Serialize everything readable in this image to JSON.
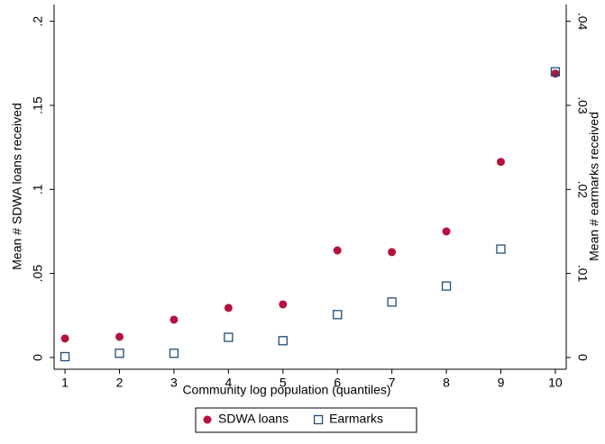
{
  "chart_data": {
    "type": "scatter",
    "x_label": "Community log population (quantiles)",
    "y_label": "Mean # SDWA loans received",
    "y2_label": "Mean # earmarks received",
    "x": [
      1,
      2,
      3,
      4,
      5,
      6,
      7,
      8,
      9,
      10
    ],
    "xlim": [
      0.8,
      10.2
    ],
    "xticks": [
      1,
      2,
      3,
      4,
      5,
      6,
      7,
      8,
      9,
      10
    ],
    "ylim": [
      -0.007,
      0.21
    ],
    "yticks": [
      {
        "value": 0,
        "label": "0"
      },
      {
        "value": 0.05,
        "label": ".05"
      },
      {
        "value": 0.1,
        "label": ".1"
      },
      {
        "value": 0.15,
        "label": ".15"
      },
      {
        "value": 0.2,
        "label": ".2"
      }
    ],
    "y2lim": [
      -0.0014,
      0.042
    ],
    "y2ticks": [
      {
        "value": 0,
        "label": "0"
      },
      {
        "value": 0.01,
        "label": ".01"
      },
      {
        "value": 0.02,
        "label": ".02"
      },
      {
        "value": 0.03,
        "label": ".03"
      },
      {
        "value": 0.04,
        "label": ".04"
      }
    ],
    "series": [
      {
        "name": "SDWA loans",
        "color": "#b5123e",
        "marker": "circle",
        "values": [
          0.0113,
          0.0123,
          0.0225,
          0.0295,
          0.0316,
          0.0637,
          0.0627,
          0.075,
          0.1164,
          0.1689
        ]
      },
      {
        "name": "Earmarks",
        "color": "#1f4e79",
        "marker": "square",
        "axis": "y2",
        "values": [
          0.0001,
          0.0005,
          0.0005,
          0.0024,
          0.002,
          0.0051,
          0.0066,
          0.0085,
          0.0129,
          0.034
        ]
      }
    ]
  }
}
